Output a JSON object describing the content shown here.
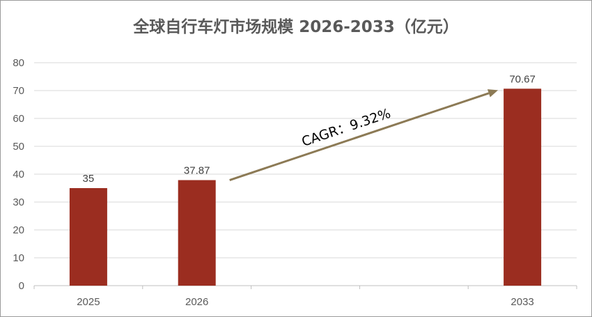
{
  "title": "全球自行车灯市场规模 2026-2033（亿元）",
  "colors": {
    "bar": "#9b2d20",
    "arrow": "#8c7a55",
    "grid": "#d9d9d9",
    "axis": "#bfbfbf"
  },
  "annotation": {
    "text": "CAGR：9.32%"
  },
  "chart_data": {
    "type": "bar",
    "title": "全球自行车灯市场规模 2026-2033（亿元）",
    "slots": [
      "2025",
      "2026",
      "",
      "",
      "2033"
    ],
    "categories": [
      "2025",
      "2026",
      "2033"
    ],
    "values": [
      35,
      37.87,
      70.67
    ],
    "data_labels": [
      "35",
      "37.87",
      "70.67"
    ],
    "ylim": [
      0,
      80
    ],
    "yticks": [
      0,
      10,
      20,
      30,
      40,
      50,
      60,
      70,
      80
    ],
    "grid": true,
    "legend": "none",
    "xlabel": "",
    "ylabel": ""
  }
}
